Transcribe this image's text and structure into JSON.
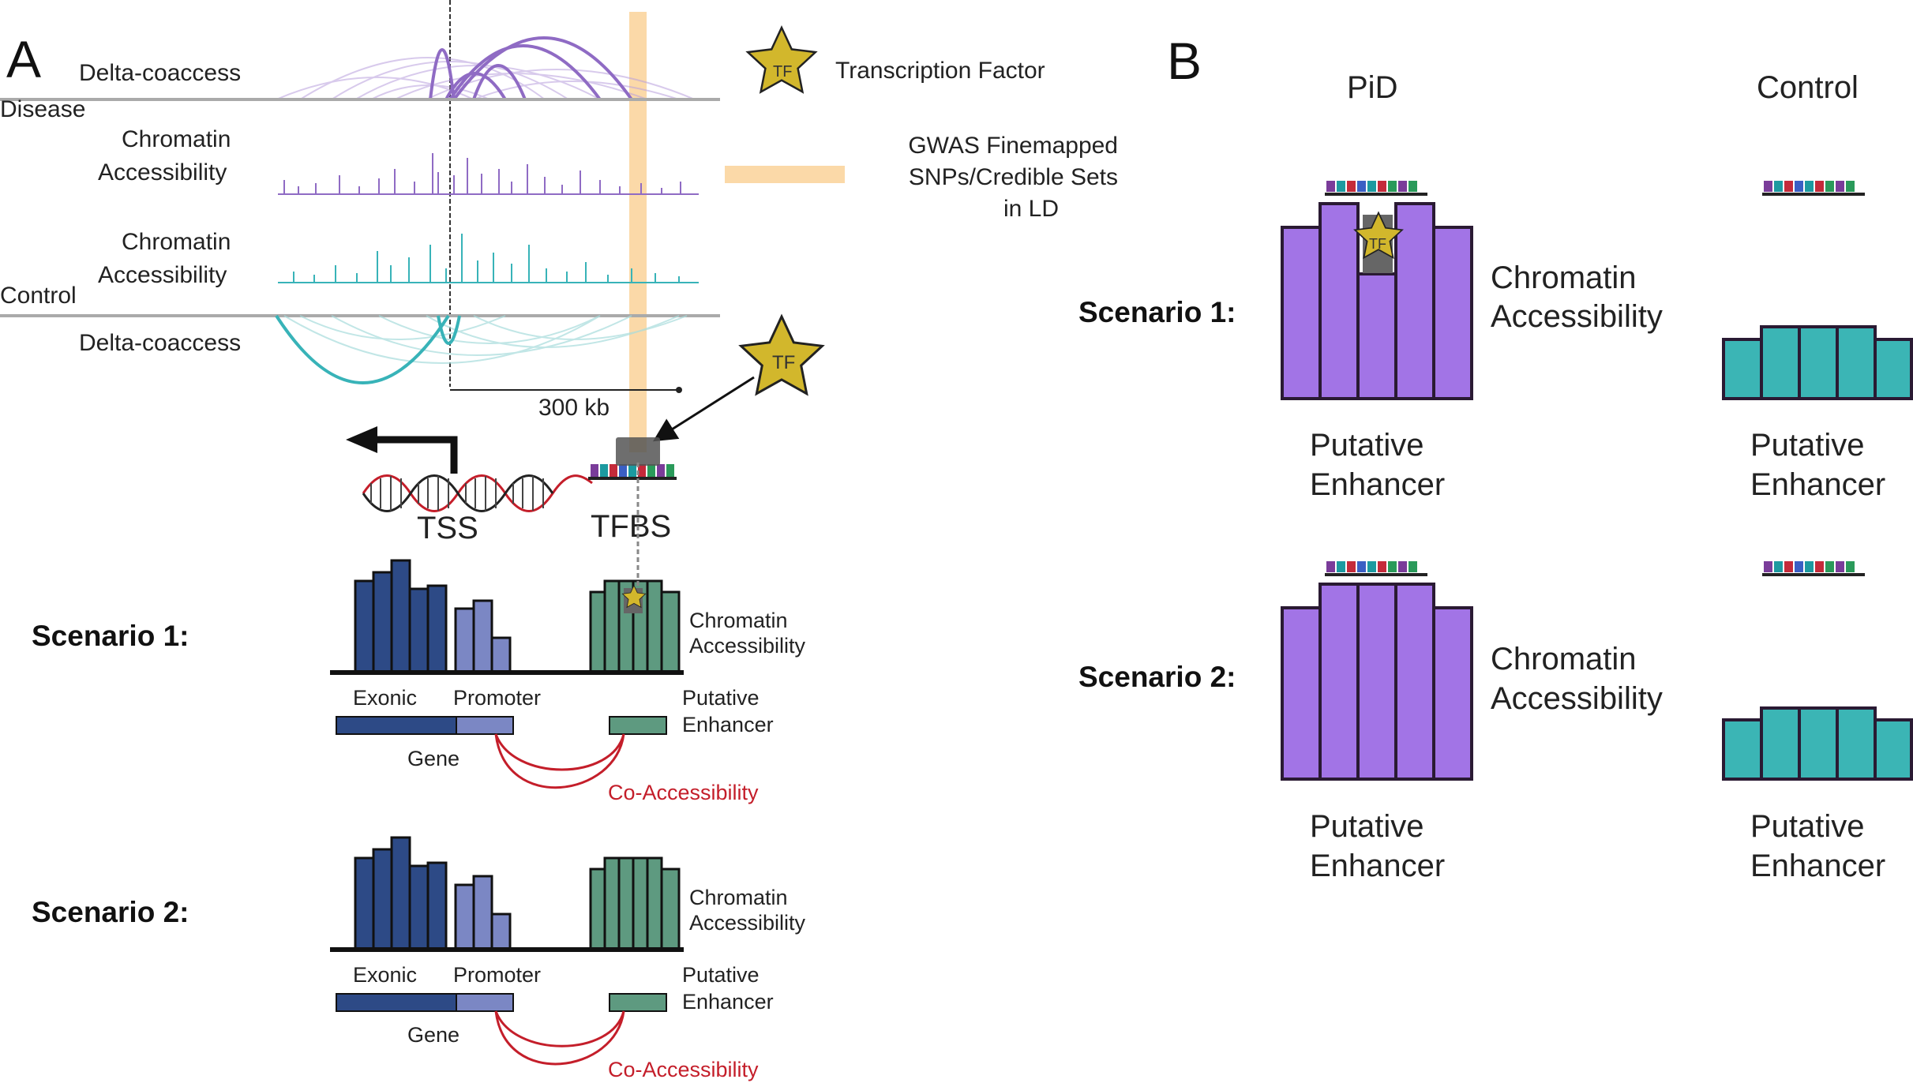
{
  "panel_a": {
    "letter": "A",
    "disease_label": "Disease",
    "control_label": "Control",
    "delta_coaccess_top": "Delta-coaccess",
    "delta_coaccess_bottom": "Delta-coaccess",
    "chrom_acc_disease": [
      "Chromatin",
      "Accessibility"
    ],
    "chrom_acc_control": [
      "Chromatin",
      "Accessibility"
    ],
    "scale_bar": "300 kb",
    "tss": "TSS",
    "tfbs": "TFBS",
    "tf_glyph": "TF",
    "legend": {
      "tf_label": "Transcription Factor",
      "gwas_lines": [
        "GWAS Finemapped",
        "SNPs/Credible Sets",
        "in LD"
      ]
    },
    "scenarios": [
      {
        "title": "Scenario 1:",
        "chromatin": [
          "Chromatin",
          "Accessibility"
        ],
        "exonic": "Exonic",
        "promoter": "Promoter",
        "enhancer": [
          "Putative",
          "Enhancer"
        ],
        "gene": "Gene",
        "coaccess": "Co-Accessibility"
      },
      {
        "title": "Scenario 2:",
        "chromatin": [
          "Chromatin",
          "Accessibility"
        ],
        "exonic": "Exonic",
        "promoter": "Promoter",
        "enhancer": [
          "Putative",
          "Enhancer"
        ],
        "gene": "Gene",
        "coaccess": "Co-Accessibility"
      }
    ]
  },
  "panel_b": {
    "letter": "B",
    "pid_header": "PiD",
    "control_header": "Control",
    "scenarios": [
      {
        "title": "Scenario 1:",
        "chromatin": [
          "Chromatin",
          "Accessibility"
        ],
        "enhancer_pid": [
          "Putative",
          "Enhancer"
        ],
        "enhancer_control": [
          "Putative",
          "Enhancer"
        ]
      },
      {
        "title": "Scenario 2:",
        "chromatin": [
          "Chromatin",
          "Accessibility"
        ],
        "enhancer_pid": [
          "Putative",
          "Enhancer"
        ],
        "enhancer_control": [
          "Putative",
          "Enhancer"
        ]
      }
    ]
  },
  "colors": {
    "purple": "#a274e6",
    "purple_arc": "#8f6bc4",
    "teal": "#3bb5b5",
    "teal_arc": "#38b3b8",
    "navy": "#2d4a86",
    "light_navy": "#7b87c4",
    "green": "#5e9a80",
    "gwas": "#fbd9a8",
    "tf_yellow": "#d2b72c",
    "red": "#c41e2a",
    "outline": "#2a1a33"
  }
}
